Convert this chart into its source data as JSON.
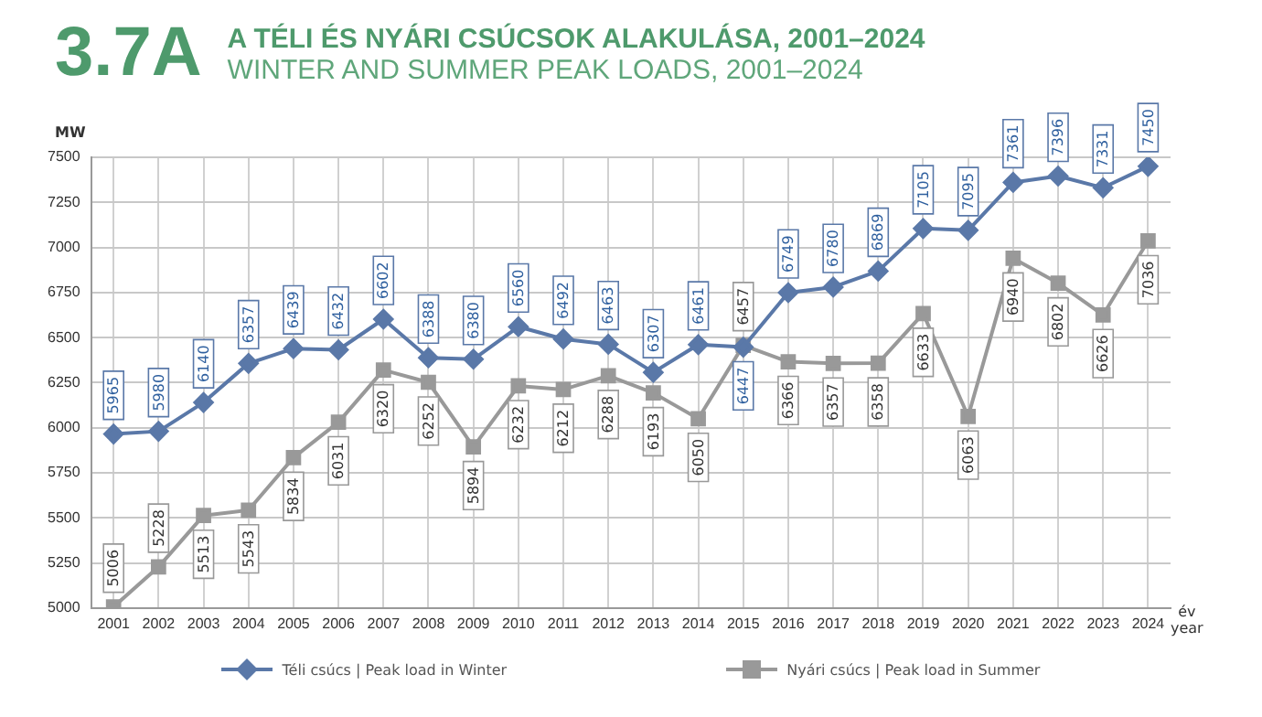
{
  "chart_data": {
    "type": "line",
    "title": "A TÉLI ÉS NYÁRI CSÚCSOK ALAKULÁSA, 2001–2024",
    "subtitle": "WINTER AND SUMMER PEAK LOADS, 2001–2024",
    "annotations": [
      "3.7A"
    ],
    "ylabel": "MW",
    "xlabel": "év\nyear",
    "categories": [
      "2001",
      "2002",
      "2003",
      "2004",
      "2005",
      "2006",
      "2007",
      "2008",
      "2009",
      "2010",
      "2011",
      "2012",
      "2013",
      "2014",
      "2015",
      "2016",
      "2017",
      "2018",
      "2019",
      "2020",
      "2021",
      "2022",
      "2023",
      "2024"
    ],
    "series": [
      {
        "name": "Téli csúcs | Peak load in Winter",
        "color": "#5a78a8",
        "marker": "diamond",
        "values": [
          5965,
          5980,
          6140,
          6357,
          6439,
          6432,
          6602,
          6388,
          6380,
          6560,
          6492,
          6463,
          6307,
          6461,
          6447,
          6749,
          6780,
          6869,
          7105,
          7095,
          7361,
          7396,
          7331,
          7450
        ]
      },
      {
        "name": "Nyári csúcs | Peak load in Summer",
        "color": "#999999",
        "marker": "square",
        "values": [
          5006,
          5228,
          5513,
          5543,
          5834,
          6031,
          6320,
          6252,
          5894,
          6232,
          6212,
          6288,
          6193,
          6050,
          6457,
          6366,
          6357,
          6358,
          6633,
          6063,
          6940,
          6802,
          6626,
          7036
        ]
      }
    ],
    "ylim": [
      5000,
      7500
    ],
    "yticks": [
      5000,
      5250,
      5500,
      5750,
      6000,
      6250,
      6500,
      6750,
      7000,
      7250,
      7500
    ],
    "grid": true,
    "line_style": "solid",
    "legend": "bottom",
    "data_labels": true
  }
}
